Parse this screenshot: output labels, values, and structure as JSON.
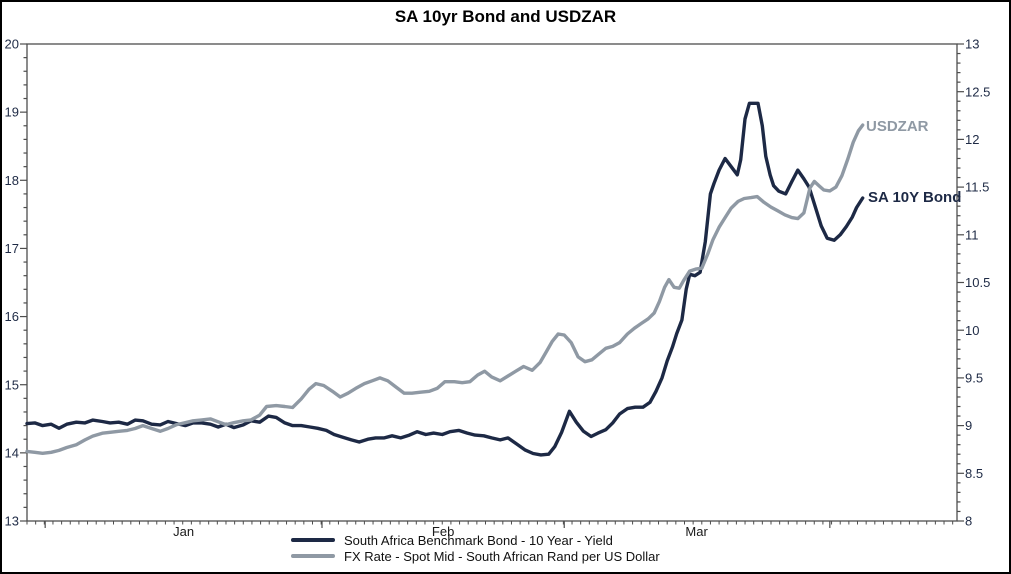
{
  "title": "SA 10yr Bond and USDZAR",
  "colors": {
    "bond": "#1d2945",
    "fx": "#8f99a4",
    "frame": "#4d4d4d",
    "tick_label": "#1e2a45",
    "month_label": "#1a1a1a",
    "legend_text": "#111111"
  },
  "chart_data": {
    "type": "line",
    "title": "SA 10yr Bond and USDZAR",
    "grid": false,
    "x_axis": {
      "kind": "time",
      "days_span": 107.5,
      "minor_tick_every_days": 1,
      "month_tick_days": [
        2.1,
        34.1,
        62.1,
        92.8
      ],
      "month_labels": [
        {
          "label": "Jan",
          "mid_day": 18.1
        },
        {
          "label": "Feb",
          "mid_day": 48.1
        },
        {
          "label": "Mar",
          "mid_day": 77.4
        }
      ]
    },
    "y_left": {
      "min": 13,
      "max": 20,
      "minor_step": 0.2,
      "tick_labels": [
        "20",
        "19",
        "18",
        "17",
        "16",
        "15",
        "14",
        "13"
      ]
    },
    "y_right": {
      "min": 8,
      "max": 13,
      "minor_step": 0.1,
      "tick_labels": [
        "13",
        "12.5",
        "12",
        "11.5",
        "11",
        "10.5",
        "10",
        "9.5",
        "9",
        "8.5",
        "8"
      ]
    },
    "series": [
      {
        "name": "South Africa Benchmark Bond - 10 Year - Yield",
        "short_label": "SA 10Y Bond",
        "axis": "left",
        "color": "#1d2945",
        "points": [
          [
            0,
            14.43
          ],
          [
            0.9,
            14.44
          ],
          [
            1.8,
            14.4
          ],
          [
            2.8,
            14.42
          ],
          [
            3.7,
            14.36
          ],
          [
            4.6,
            14.42
          ],
          [
            5.7,
            14.45
          ],
          [
            6.7,
            14.44
          ],
          [
            7.6,
            14.48
          ],
          [
            8.7,
            14.46
          ],
          [
            9.6,
            14.44
          ],
          [
            10.6,
            14.45
          ],
          [
            11.6,
            14.42
          ],
          [
            12.5,
            14.48
          ],
          [
            13.4,
            14.47
          ],
          [
            14.4,
            14.42
          ],
          [
            15.4,
            14.41
          ],
          [
            16.3,
            14.46
          ],
          [
            17.3,
            14.43
          ],
          [
            18.3,
            14.4
          ],
          [
            19.2,
            14.44
          ],
          [
            20.2,
            14.44
          ],
          [
            21.2,
            14.42
          ],
          [
            22.1,
            14.38
          ],
          [
            23,
            14.42
          ],
          [
            23.9,
            14.37
          ],
          [
            25,
            14.41
          ],
          [
            25.9,
            14.47
          ],
          [
            26.9,
            14.45
          ],
          [
            27.9,
            14.54
          ],
          [
            28.8,
            14.52
          ],
          [
            29.8,
            14.44
          ],
          [
            30.7,
            14.4
          ],
          [
            31.7,
            14.4
          ],
          [
            32.7,
            14.38
          ],
          [
            33.6,
            14.36
          ],
          [
            34.6,
            14.33
          ],
          [
            35.5,
            14.27
          ],
          [
            36.5,
            14.23
          ],
          [
            37.5,
            14.19
          ],
          [
            38.4,
            14.16
          ],
          [
            39.4,
            14.2
          ],
          [
            40.3,
            14.22
          ],
          [
            41.3,
            14.22
          ],
          [
            42.2,
            14.25
          ],
          [
            43.2,
            14.22
          ],
          [
            44.2,
            14.26
          ],
          [
            45.1,
            14.31
          ],
          [
            46.1,
            14.27
          ],
          [
            47,
            14.29
          ],
          [
            48,
            14.27
          ],
          [
            48.9,
            14.31
          ],
          [
            49.9,
            14.33
          ],
          [
            50.9,
            14.29
          ],
          [
            51.8,
            14.26
          ],
          [
            52.8,
            14.25
          ],
          [
            53.7,
            14.22
          ],
          [
            54.7,
            14.19
          ],
          [
            55.6,
            14.22
          ],
          [
            56.6,
            14.13
          ],
          [
            57.6,
            14.04
          ],
          [
            58.5,
            13.99
          ],
          [
            59.4,
            13.97
          ],
          [
            60.3,
            13.98
          ],
          [
            61,
            14.09
          ],
          [
            61.8,
            14.3
          ],
          [
            62.7,
            14.61
          ],
          [
            63.5,
            14.45
          ],
          [
            64.3,
            14.32
          ],
          [
            65.2,
            14.24
          ],
          [
            66,
            14.29
          ],
          [
            66.9,
            14.34
          ],
          [
            67.7,
            14.44
          ],
          [
            68.5,
            14.57
          ],
          [
            69.4,
            14.65
          ],
          [
            70.3,
            14.67
          ],
          [
            71.2,
            14.67
          ],
          [
            72,
            14.74
          ],
          [
            72.7,
            14.9
          ],
          [
            73.4,
            15.1
          ],
          [
            74,
            15.35
          ],
          [
            74.6,
            15.55
          ],
          [
            75.1,
            15.75
          ],
          [
            75.7,
            15.95
          ],
          [
            76.2,
            16.4
          ],
          [
            76.6,
            16.62
          ],
          [
            77.2,
            16.6
          ],
          [
            77.8,
            16.65
          ],
          [
            78.4,
            17.1
          ],
          [
            79,
            17.8
          ],
          [
            79.4,
            17.95
          ],
          [
            80,
            18.15
          ],
          [
            80.7,
            18.32
          ],
          [
            81.4,
            18.2
          ],
          [
            82.1,
            18.08
          ],
          [
            82.5,
            18.3
          ],
          [
            83,
            18.9
          ],
          [
            83.5,
            19.13
          ],
          [
            84.5,
            19.13
          ],
          [
            85,
            18.8
          ],
          [
            85.4,
            18.35
          ],
          [
            85.9,
            18.08
          ],
          [
            86.3,
            17.92
          ],
          [
            86.9,
            17.84
          ],
          [
            87.7,
            17.8
          ],
          [
            88.4,
            17.98
          ],
          [
            89.1,
            18.15
          ],
          [
            89.8,
            18.02
          ],
          [
            90.4,
            17.9
          ],
          [
            91.1,
            17.62
          ],
          [
            91.8,
            17.33
          ],
          [
            92.5,
            17.15
          ],
          [
            93.3,
            17.12
          ],
          [
            94,
            17.2
          ],
          [
            94.7,
            17.32
          ],
          [
            95.4,
            17.46
          ],
          [
            95.9,
            17.6
          ],
          [
            96.6,
            17.74
          ]
        ]
      },
      {
        "name": "FX Rate - Spot Mid - South African Rand per US Dollar",
        "short_label": "USDZAR",
        "axis": "right",
        "color": "#8f99a4",
        "points": [
          [
            0,
            8.73
          ],
          [
            0.9,
            8.72
          ],
          [
            1.8,
            8.71
          ],
          [
            2.8,
            8.72
          ],
          [
            3.7,
            8.74
          ],
          [
            4.6,
            8.77
          ],
          [
            5.7,
            8.8
          ],
          [
            6.7,
            8.85
          ],
          [
            7.6,
            8.89
          ],
          [
            8.7,
            8.92
          ],
          [
            9.6,
            8.93
          ],
          [
            10.6,
            8.94
          ],
          [
            11.6,
            8.95
          ],
          [
            12.5,
            8.97
          ],
          [
            13.4,
            9.0
          ],
          [
            14.4,
            8.97
          ],
          [
            15.4,
            8.94
          ],
          [
            16.3,
            8.97
          ],
          [
            17.3,
            9.01
          ],
          [
            18.3,
            9.03
          ],
          [
            19.2,
            9.05
          ],
          [
            20.2,
            9.06
          ],
          [
            21.2,
            9.07
          ],
          [
            22.1,
            9.04
          ],
          [
            23,
            9.01
          ],
          [
            23.9,
            9.03
          ],
          [
            25,
            9.05
          ],
          [
            25.9,
            9.06
          ],
          [
            26.9,
            9.11
          ],
          [
            27.7,
            9.2
          ],
          [
            28.8,
            9.21
          ],
          [
            29.8,
            9.2
          ],
          [
            30.7,
            9.19
          ],
          [
            31.7,
            9.28
          ],
          [
            32.6,
            9.38
          ],
          [
            33.4,
            9.44
          ],
          [
            34.3,
            9.42
          ],
          [
            35.3,
            9.36
          ],
          [
            36.2,
            9.3
          ],
          [
            37.1,
            9.34
          ],
          [
            38,
            9.39
          ],
          [
            39,
            9.44
          ],
          [
            39.9,
            9.47
          ],
          [
            40.8,
            9.5
          ],
          [
            41.7,
            9.47
          ],
          [
            42.7,
            9.4
          ],
          [
            43.6,
            9.34
          ],
          [
            44.5,
            9.34
          ],
          [
            45.5,
            9.35
          ],
          [
            46.5,
            9.36
          ],
          [
            47.4,
            9.39
          ],
          [
            48.3,
            9.46
          ],
          [
            49.4,
            9.46
          ],
          [
            50.3,
            9.45
          ],
          [
            51.2,
            9.46
          ],
          [
            52.1,
            9.53
          ],
          [
            52.9,
            9.57
          ],
          [
            53.7,
            9.51
          ],
          [
            54.7,
            9.47
          ],
          [
            55.6,
            9.52
          ],
          [
            56.5,
            9.57
          ],
          [
            57.4,
            9.62
          ],
          [
            58.4,
            9.58
          ],
          [
            59.3,
            9.66
          ],
          [
            60,
            9.77
          ],
          [
            60.7,
            9.88
          ],
          [
            61.4,
            9.96
          ],
          [
            62.1,
            9.95
          ],
          [
            62.9,
            9.87
          ],
          [
            63.7,
            9.72
          ],
          [
            64.5,
            9.67
          ],
          [
            65.3,
            9.69
          ],
          [
            66.1,
            9.75
          ],
          [
            66.9,
            9.81
          ],
          [
            67.7,
            9.83
          ],
          [
            68.5,
            9.87
          ],
          [
            69.4,
            9.96
          ],
          [
            70.2,
            10.02
          ],
          [
            71,
            10.07
          ],
          [
            71.8,
            10.12
          ],
          [
            72.5,
            10.18
          ],
          [
            73.1,
            10.3
          ],
          [
            73.7,
            10.45
          ],
          [
            74.2,
            10.53
          ],
          [
            74.8,
            10.45
          ],
          [
            75.4,
            10.44
          ],
          [
            75.9,
            10.52
          ],
          [
            76.6,
            10.62
          ],
          [
            77.3,
            10.64
          ],
          [
            78,
            10.65
          ],
          [
            78.7,
            10.8
          ],
          [
            79.3,
            10.95
          ],
          [
            80,
            11.08
          ],
          [
            80.7,
            11.18
          ],
          [
            81.4,
            11.28
          ],
          [
            82.2,
            11.35
          ],
          [
            82.9,
            11.38
          ],
          [
            83.7,
            11.39
          ],
          [
            84.4,
            11.4
          ],
          [
            85.2,
            11.34
          ],
          [
            86,
            11.29
          ],
          [
            86.8,
            11.25
          ],
          [
            87.6,
            11.21
          ],
          [
            88.4,
            11.18
          ],
          [
            89.1,
            11.17
          ],
          [
            89.8,
            11.23
          ],
          [
            90.5,
            11.49
          ],
          [
            91,
            11.56
          ],
          [
            91.6,
            11.51
          ],
          [
            92.1,
            11.47
          ],
          [
            92.8,
            11.46
          ],
          [
            93.5,
            11.5
          ],
          [
            94.2,
            11.62
          ],
          [
            94.9,
            11.8
          ],
          [
            95.5,
            11.97
          ],
          [
            96.1,
            12.09
          ],
          [
            96.6,
            12.15
          ]
        ]
      }
    ]
  }
}
